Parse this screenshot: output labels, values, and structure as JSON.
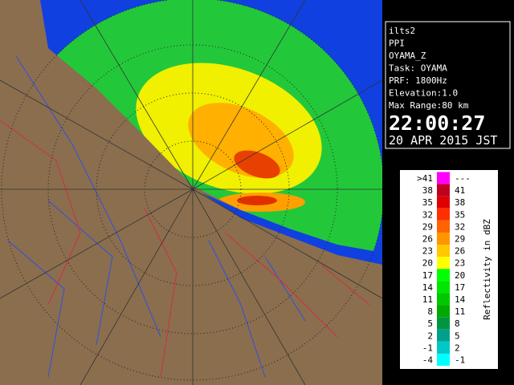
{
  "panel": {
    "lines": [
      "ilts2",
      "PPI",
      "OYAMA_Z",
      "Task: OYAMA",
      "PRF: 1800Hz",
      "Elevation:1.0",
      "Max Range:80 km"
    ],
    "time": "22:00:27",
    "date": "20 APR 2015 JST"
  },
  "legend": {
    "title": "Reflectivity in dBZ",
    "rows": [
      {
        "low": ">41",
        "high": "---",
        "color": "#ff00ff"
      },
      {
        "low": "38",
        "high": "41",
        "color": "#c00020"
      },
      {
        "low": "35",
        "high": "38",
        "color": "#e00000"
      },
      {
        "low": "32",
        "high": "35",
        "color": "#ff3000"
      },
      {
        "low": "29",
        "high": "32",
        "color": "#ff6400"
      },
      {
        "low": "26",
        "high": "29",
        "color": "#ff9600"
      },
      {
        "low": "23",
        "high": "26",
        "color": "#ffc800"
      },
      {
        "low": "20",
        "high": "23",
        "color": "#ffff00"
      },
      {
        "low": "17",
        "high": "20",
        "color": "#00ff00"
      },
      {
        "low": "14",
        "high": "17",
        "color": "#00e600"
      },
      {
        "low": "11",
        "high": "14",
        "color": "#00c800"
      },
      {
        "low": "8",
        "high": "11",
        "color": "#00aa00"
      },
      {
        "low": "5",
        "high": "8",
        "color": "#009640"
      },
      {
        "low": "2",
        "high": "5",
        "color": "#00a08c"
      },
      {
        "low": "-1",
        "high": "2",
        "color": "#00c8c8"
      },
      {
        "low": "-4",
        "high": "-1",
        "color": "#00ffff"
      }
    ]
  }
}
